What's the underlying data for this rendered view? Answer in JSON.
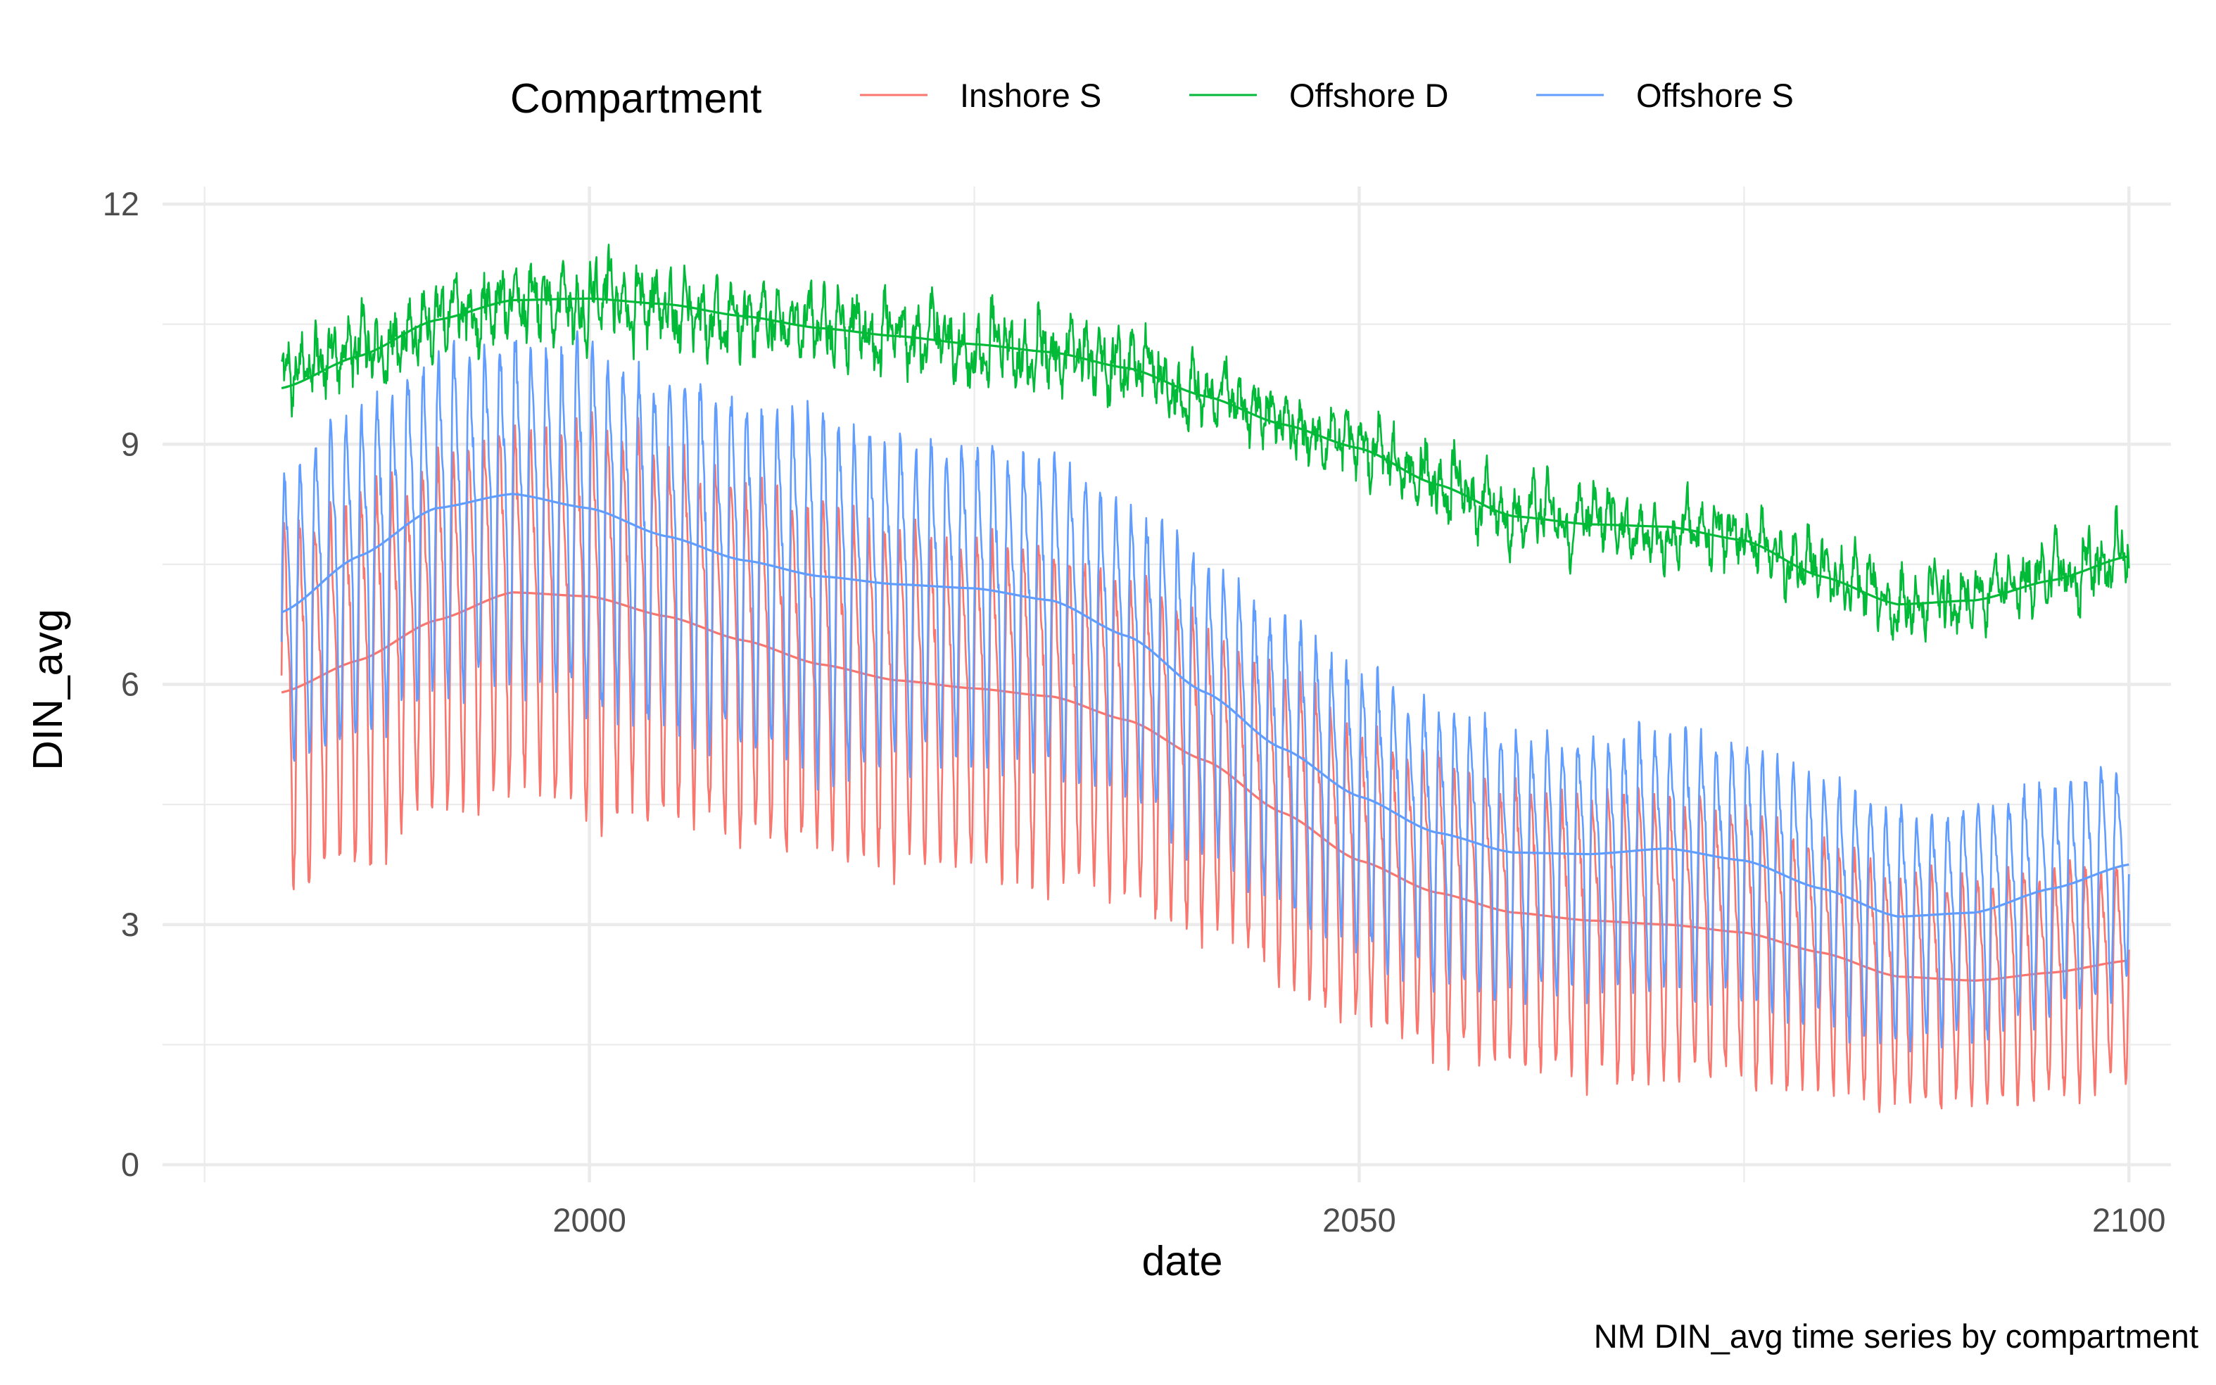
{
  "chart_data": {
    "type": "line",
    "xlabel": "date",
    "ylabel": "DIN_avg",
    "caption": "NM DIN_avg time series by compartment",
    "legend": {
      "title": "Compartment",
      "position": "top"
    },
    "xlim": [
      1972.5,
      2102.5
    ],
    "ylim": [
      0,
      12
    ],
    "x_ticks": [
      2000,
      2050,
      2100
    ],
    "x_tick_labels": [
      "2000",
      "2050",
      "2100"
    ],
    "y_ticks": [
      0,
      3,
      6,
      9,
      12
    ],
    "y_tick_labels": [
      "0",
      "3",
      "6",
      "9",
      "12"
    ],
    "grid": true,
    "x_start": 1980,
    "x_end": 2100,
    "series": [
      {
        "name": "Inshore S",
        "color": "#F8766D",
        "seasonal_amplitude": [
          2.3,
          2.3,
          2.5,
          2.3,
          2.2,
          2.2,
          2.0,
          1.9,
          1.8,
          1.8,
          1.6,
          1.5,
          1.4
        ],
        "smooth": {
          "x": [
            1980,
            1985,
            1990,
            1995,
            2000,
            2005,
            2010,
            2015,
            2020,
            2025,
            2030,
            2035,
            2040,
            2045,
            2050,
            2055,
            2060,
            2065,
            2070,
            2075,
            2080,
            2085,
            2090,
            2095,
            2100
          ],
          "y": [
            5.9,
            6.3,
            6.8,
            7.15,
            7.1,
            6.85,
            6.55,
            6.25,
            6.05,
            5.95,
            5.85,
            5.55,
            5.05,
            4.4,
            3.8,
            3.4,
            3.15,
            3.05,
            3.0,
            2.9,
            2.65,
            2.35,
            2.3,
            2.4,
            2.55
          ]
        }
      },
      {
        "name": "Offshore D",
        "color": "#00BA38",
        "seasonal_amplitude": [
          0.3,
          0.35,
          0.4,
          0.35,
          0.35,
          0.35,
          0.3,
          0.3,
          0.3,
          0.3,
          0.3,
          0.3,
          0.3
        ],
        "smooth": {
          "x": [
            1980,
            1985,
            1990,
            1995,
            2000,
            2005,
            2010,
            2015,
            2020,
            2025,
            2030,
            2035,
            2040,
            2045,
            2050,
            2055,
            2060,
            2065,
            2070,
            2075,
            2080,
            2085,
            2090,
            2095,
            2100
          ],
          "y": [
            9.7,
            10.1,
            10.55,
            10.8,
            10.82,
            10.75,
            10.6,
            10.45,
            10.35,
            10.25,
            10.15,
            9.95,
            9.6,
            9.25,
            8.95,
            8.5,
            8.1,
            8.0,
            7.97,
            7.8,
            7.35,
            7.0,
            7.05,
            7.3,
            7.6
          ]
        }
      },
      {
        "name": "Offshore S",
        "color": "#619CFF",
        "seasonal_amplitude": [
          2.0,
          2.1,
          2.3,
          2.3,
          2.1,
          2.0,
          1.9,
          1.85,
          1.7,
          1.7,
          1.55,
          1.5,
          1.4
        ],
        "smooth": {
          "x": [
            1980,
            1985,
            1990,
            1995,
            2000,
            2005,
            2010,
            2015,
            2020,
            2025,
            2030,
            2035,
            2040,
            2045,
            2050,
            2055,
            2060,
            2065,
            2070,
            2075,
            2080,
            2085,
            2090,
            2095,
            2100
          ],
          "y": [
            6.9,
            7.6,
            8.2,
            8.38,
            8.2,
            7.85,
            7.55,
            7.35,
            7.25,
            7.2,
            7.05,
            6.6,
            5.9,
            5.2,
            4.6,
            4.15,
            3.9,
            3.88,
            3.95,
            3.8,
            3.45,
            3.1,
            3.15,
            3.45,
            3.75
          ]
        }
      }
    ]
  }
}
